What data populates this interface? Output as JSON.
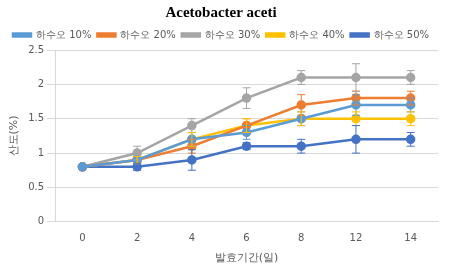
{
  "chart_data": {
    "type": "line",
    "title": "Acetobacter aceti",
    "x_label": "발효기간(일)",
    "y_label": "산도(%)",
    "categories": [
      "0",
      "2",
      "4",
      "6",
      "8",
      "12",
      "14"
    ],
    "series": [
      {
        "name": "하수오 10%",
        "color": "#5b9bd5",
        "marker": "circle",
        "values": [
          0.8,
          0.9,
          1.2,
          1.3,
          1.5,
          1.7,
          1.7
        ],
        "errors": [
          0.0,
          0.05,
          0.1,
          0.1,
          0.1,
          0.15,
          0.1
        ]
      },
      {
        "name": "하수오 20%",
        "color": "#ed7d31",
        "marker": "circle",
        "values": [
          0.8,
          0.9,
          1.1,
          1.4,
          1.7,
          1.8,
          1.8
        ],
        "errors": [
          0.0,
          0.05,
          0.1,
          0.1,
          0.15,
          0.1,
          0.1
        ]
      },
      {
        "name": "하수오 30%",
        "color": "#a5a5a5",
        "marker": "circle",
        "values": [
          0.8,
          1.0,
          1.4,
          1.8,
          2.1,
          2.1,
          2.1
        ],
        "errors": [
          0.0,
          0.1,
          0.1,
          0.15,
          0.1,
          0.2,
          0.1
        ]
      },
      {
        "name": "하수오 40%",
        "color": "#ffc000",
        "marker": "circle",
        "values": [
          0.8,
          0.9,
          1.2,
          1.4,
          1.5,
          1.5,
          1.5
        ],
        "errors": [
          0.0,
          0.05,
          0.1,
          0.1,
          0.1,
          0.1,
          0.1
        ]
      },
      {
        "name": "하수오 50%",
        "color": "#4472c4",
        "marker": "circle",
        "values": [
          0.8,
          0.8,
          0.9,
          1.1,
          1.1,
          1.2,
          1.2
        ],
        "errors": [
          0.0,
          0.05,
          0.15,
          0.05,
          0.1,
          0.2,
          0.1
        ]
      }
    ],
    "ylim": [
      0,
      2.5
    ],
    "yticks": [
      0,
      0.5,
      1,
      1.5,
      2,
      2.5
    ],
    "grid": true,
    "legend": "top"
  }
}
